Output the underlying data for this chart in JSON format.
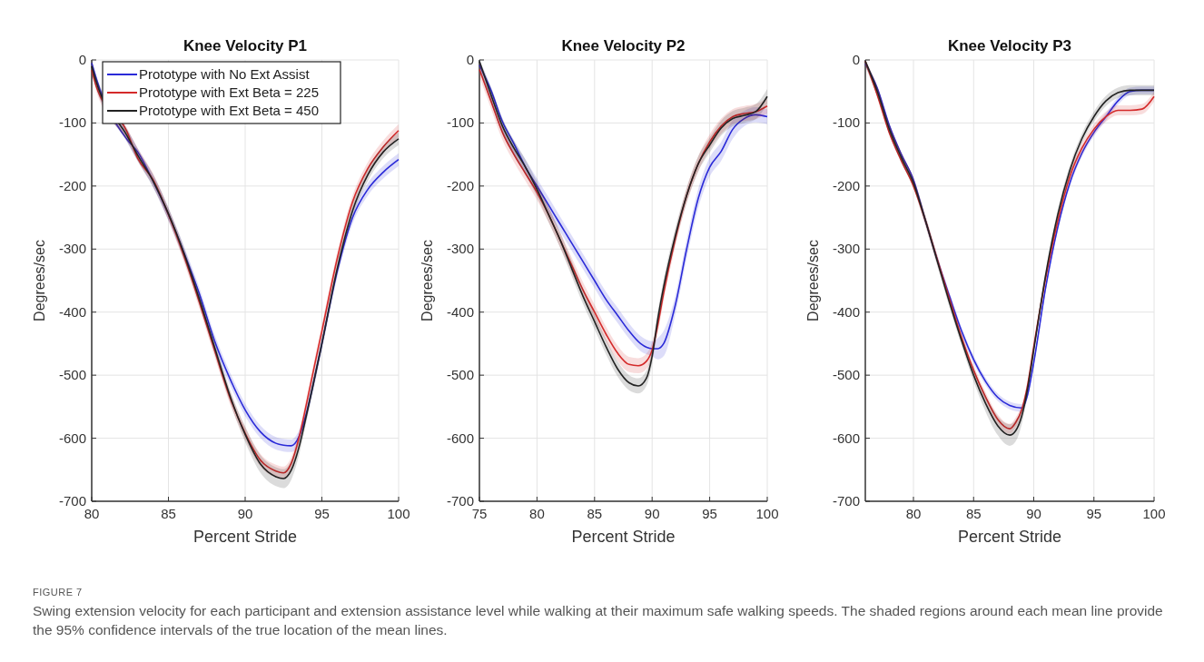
{
  "chart_data": [
    {
      "type": "line",
      "title": "Knee Velocity P1",
      "xlabel": "Percent Stride",
      "ylabel": "Degrees/sec",
      "xlim": [
        80,
        100
      ],
      "xticks": [
        80,
        85,
        90,
        95,
        100
      ],
      "ylim": [
        -700,
        0
      ],
      "yticks": [
        -700,
        -600,
        -500,
        -400,
        -300,
        -200,
        -100,
        0
      ],
      "grid": true,
      "legend": "top left",
      "annotations": [
        "FIGURE 7",
        "Swing extension velocity for each participant and extension assistance level while walking at their maximum safe walking speeds. The shaded regions around each mean line provide the 95% confidence intervals of the true location of the mean lines."
      ],
      "series": [
        {
          "name": "Prototype with No Ext Assist",
          "color": "#2a2ad8",
          "x": [
            80,
            80.3,
            82.3,
            83,
            84,
            85,
            86,
            87,
            88,
            89,
            90,
            91,
            92,
            92.5,
            93,
            93.5,
            94,
            94.5,
            95,
            96,
            97,
            98,
            99,
            100
          ],
          "values": [
            -5,
            -30,
            -126,
            -146,
            -192,
            -245,
            -305,
            -370,
            -445,
            -505,
            -555,
            -590,
            -608,
            -611,
            -612,
            -598,
            -560,
            -507,
            -450,
            -335,
            -250,
            -205,
            -178,
            -158
          ],
          "lower": [
            -20,
            -45,
            -130,
            -160,
            -202,
            -255,
            -315,
            -380,
            -455,
            -515,
            -565,
            -600,
            -618,
            -621,
            -622,
            -608,
            -570,
            -517,
            -460,
            -345,
            -260,
            -215,
            -188,
            -168
          ],
          "upper": [
            0,
            -25,
            -110,
            -140,
            -182,
            -235,
            -295,
            -360,
            -435,
            -495,
            -545,
            -580,
            -598,
            -601,
            -602,
            -588,
            -550,
            -497,
            -440,
            -325,
            -240,
            -195,
            -168,
            -148
          ]
        },
        {
          "name": "Prototype with Ext Beta = 225",
          "color": "#d42a2a",
          "x": [
            80,
            80.3,
            82.3,
            83,
            84,
            85,
            86,
            87,
            88,
            89,
            90,
            91,
            92,
            92.5,
            93,
            93.5,
            94,
            94.5,
            95,
            96,
            97,
            98,
            99,
            100
          ],
          "values": [
            -16,
            -42,
            -114,
            -156,
            -190,
            -245,
            -310,
            -383,
            -460,
            -535,
            -592,
            -635,
            -652,
            -655,
            -640,
            -600,
            -545,
            -487,
            -430,
            -315,
            -225,
            -172,
            -138,
            -112
          ],
          "lower": [
            -25,
            -50,
            -128,
            -160,
            -200,
            -255,
            -320,
            -393,
            -470,
            -545,
            -602,
            -645,
            -662,
            -665,
            -650,
            -610,
            -555,
            -497,
            -440,
            -325,
            -235,
            -182,
            -148,
            -122
          ],
          "upper": [
            -5,
            -30,
            -108,
            -140,
            -180,
            -235,
            -300,
            -373,
            -450,
            -525,
            -582,
            -625,
            -642,
            -645,
            -630,
            -590,
            -535,
            -477,
            -420,
            -305,
            -215,
            -162,
            -128,
            -102
          ]
        },
        {
          "name": "Prototype with Ext Beta = 450",
          "color": "#222222",
          "x": [
            80,
            80.3,
            82.3,
            83,
            84,
            85,
            86,
            87,
            88,
            89,
            90,
            91,
            92,
            92.5,
            93,
            93.5,
            94,
            94.5,
            95,
            96,
            97,
            98,
            99,
            100
          ],
          "values": [
            -10,
            -35,
            -120,
            -151,
            -192,
            -244,
            -306,
            -378,
            -455,
            -532,
            -594,
            -641,
            -661,
            -664,
            -651,
            -615,
            -563,
            -507,
            -450,
            -331,
            -239,
            -182,
            -146,
            -125
          ],
          "lower": [
            -20,
            -45,
            -130,
            -161,
            -202,
            -254,
            -316,
            -388,
            -465,
            -542,
            -606,
            -655,
            -676,
            -679,
            -666,
            -628,
            -573,
            -517,
            -460,
            -341,
            -249,
            -192,
            -156,
            -135
          ],
          "upper": [
            0,
            -25,
            -110,
            -141,
            -182,
            -234,
            -296,
            -368,
            -445,
            -522,
            -582,
            -627,
            -646,
            -649,
            -636,
            -602,
            -553,
            -497,
            -440,
            -321,
            -229,
            -172,
            -136,
            -115
          ]
        }
      ]
    },
    {
      "type": "line",
      "title": "Knee Velocity P2",
      "xlabel": "Percent Stride",
      "ylabel": "Degrees/sec",
      "xlim": [
        75,
        100
      ],
      "xticks": [
        75,
        80,
        85,
        90,
        95,
        100
      ],
      "ylim": [
        -700,
        0
      ],
      "yticks": [
        -700,
        -600,
        -500,
        -400,
        -300,
        -200,
        -100,
        0
      ],
      "grid": true,
      "series": [
        {
          "color": "#2a2ad8",
          "x": [
            75,
            76,
            77,
            78,
            79,
            80,
            81,
            82,
            83,
            84,
            85,
            86,
            87,
            88,
            89,
            90,
            90.5,
            91,
            92,
            93,
            94,
            95,
            96,
            97,
            98,
            99,
            100
          ],
          "values": [
            -8,
            -48,
            -98,
            -133,
            -170,
            -200,
            -230,
            -260,
            -290,
            -320,
            -350,
            -380,
            -405,
            -430,
            -450,
            -458,
            -458,
            -450,
            -390,
            -300,
            -220,
            -170,
            -145,
            -110,
            -93,
            -87,
            -90
          ],
          "lower": [
            -17,
            -67,
            -117,
            -152,
            -182,
            -212,
            -242,
            -272,
            -302,
            -332,
            -362,
            -392,
            -417,
            -442,
            -462,
            -470,
            -475,
            -470,
            -405,
            -315,
            -235,
            -185,
            -160,
            -125,
            -105,
            -99,
            -102
          ],
          "upper": [
            0,
            -43,
            -93,
            -128,
            -158,
            -188,
            -218,
            -248,
            -278,
            -308,
            -338,
            -368,
            -393,
            -418,
            -438,
            -446,
            -441,
            -430,
            -375,
            -285,
            -205,
            -155,
            -130,
            -95,
            -81,
            -75,
            -78
          ]
        },
        {
          "color": "#d42a2a",
          "x": [
            75,
            76,
            77,
            78,
            79,
            80,
            81,
            82,
            83,
            84,
            85,
            86,
            87,
            88,
            88.8,
            89.5,
            90,
            90.5,
            91,
            92,
            93,
            94,
            95,
            96,
            97,
            98,
            99,
            100
          ],
          "values": [
            -15,
            -65,
            -115,
            -150,
            -180,
            -210,
            -245,
            -285,
            -325,
            -365,
            -400,
            -435,
            -465,
            -483,
            -485,
            -478,
            -460,
            -420,
            -370,
            -285,
            -215,
            -165,
            -130,
            -105,
            -90,
            -85,
            -82,
            -73
          ],
          "lower": [
            -27,
            -77,
            -127,
            -162,
            -192,
            -222,
            -257,
            -297,
            -337,
            -377,
            -412,
            -447,
            -477,
            -495,
            -497,
            -490,
            -472,
            -432,
            -382,
            -297,
            -227,
            -177,
            -142,
            -117,
            -102,
            -97,
            -94,
            -85
          ],
          "upper": [
            -3,
            -53,
            -103,
            -138,
            -168,
            -198,
            -233,
            -273,
            -313,
            -353,
            -388,
            -423,
            -453,
            -471,
            -473,
            -466,
            -448,
            -408,
            -358,
            -273,
            -203,
            -153,
            -118,
            -93,
            -78,
            -73,
            -70,
            -61
          ]
        },
        {
          "color": "#222222",
          "x": [
            75,
            76,
            77,
            78,
            79,
            80,
            81,
            82,
            83,
            84,
            85,
            86,
            87,
            88,
            88.8,
            89.5,
            90,
            90.5,
            91,
            92,
            93,
            94,
            95,
            96,
            97,
            98,
            99,
            100
          ],
          "values": [
            -2,
            -55,
            -105,
            -140,
            -170,
            -205,
            -245,
            -285,
            -330,
            -375,
            -415,
            -455,
            -490,
            -512,
            -517,
            -505,
            -470,
            -410,
            -360,
            -280,
            -215,
            -165,
            -135,
            -108,
            -93,
            -88,
            -82,
            -58
          ],
          "lower": [
            -14,
            -67,
            -117,
            -152,
            -182,
            -217,
            -257,
            -297,
            -342,
            -387,
            -427,
            -467,
            -502,
            -524,
            -529,
            -517,
            -482,
            -422,
            -372,
            -292,
            -227,
            -177,
            -147,
            -120,
            -105,
            -100,
            -94,
            -70
          ],
          "upper": [
            0,
            -43,
            -93,
            -128,
            -158,
            -193,
            -233,
            -273,
            -318,
            -363,
            -403,
            -443,
            -478,
            -500,
            -505,
            -493,
            -458,
            -398,
            -348,
            -268,
            -203,
            -153,
            -123,
            -96,
            -81,
            -76,
            -70,
            -46
          ]
        }
      ]
    },
    {
      "type": "line",
      "title": "Knee Velocity P3",
      "xlabel": "Percent Stride",
      "ylabel": "Degrees/sec",
      "xlim": [
        76,
        100
      ],
      "xticks": [
        80,
        85,
        90,
        95,
        100
      ],
      "ylim": [
        -700,
        0
      ],
      "yticks": [
        -700,
        -600,
        -500,
        -400,
        -300,
        -200,
        -100,
        0
      ],
      "grid": true,
      "series": [
        {
          "color": "#2a2ad8",
          "x": [
            76,
            77,
            78,
            79,
            80,
            81,
            82,
            83,
            84,
            85,
            86,
            87,
            88,
            89,
            89.5,
            90,
            91,
            92,
            93,
            94,
            95,
            96,
            97,
            98,
            99,
            100
          ],
          "values": [
            -6,
            -45,
            -104,
            -150,
            -190,
            -255,
            -318,
            -375,
            -430,
            -475,
            -510,
            -535,
            -548,
            -552,
            -530,
            -480,
            -360,
            -265,
            -195,
            -148,
            -115,
            -90,
            -65,
            -50,
            -48,
            -48
          ],
          "lower": [
            -8,
            -56,
            -116,
            -161,
            -201,
            -261,
            -324,
            -381,
            -436,
            -481,
            -516,
            -541,
            -554,
            -558,
            -536,
            -486,
            -366,
            -271,
            -201,
            -154,
            -121,
            -96,
            -71,
            -56,
            -54,
            -54
          ],
          "upper": [
            0,
            -44,
            -104,
            -149,
            -189,
            -249,
            -312,
            -369,
            -424,
            -469,
            -504,
            -529,
            -542,
            -546,
            -524,
            -474,
            -354,
            -259,
            -189,
            -142,
            -109,
            -84,
            -59,
            -44,
            -42,
            -42
          ]
        },
        {
          "color": "#d42a2a",
          "x": [
            76,
            77,
            78,
            79,
            80,
            81,
            82,
            83,
            84,
            85,
            86,
            87,
            88,
            88.5,
            89,
            89.5,
            90,
            91,
            92,
            93,
            94,
            95,
            96,
            97,
            98,
            99,
            100
          ],
          "values": [
            -2,
            -56,
            -116,
            -160,
            -200,
            -255,
            -318,
            -380,
            -440,
            -492,
            -535,
            -570,
            -585,
            -575,
            -555,
            -515,
            -455,
            -345,
            -255,
            -185,
            -140,
            -110,
            -90,
            -80,
            -80,
            -78,
            -58
          ],
          "lower": [
            -10,
            -58,
            -118,
            -163,
            -203,
            -263,
            -326,
            -388,
            -448,
            -500,
            -543,
            -578,
            -593,
            -583,
            -563,
            -523,
            -463,
            -353,
            -263,
            -193,
            -148,
            -118,
            -98,
            -88,
            -88,
            -86,
            -66
          ],
          "upper": [
            0,
            -42,
            -102,
            -147,
            -187,
            -247,
            -310,
            -372,
            -432,
            -484,
            -527,
            -562,
            -577,
            -567,
            -547,
            -507,
            -447,
            -337,
            -247,
            -177,
            -132,
            -102,
            -82,
            -72,
            -72,
            -70,
            -50
          ]
        },
        {
          "color": "#222222",
          "x": [
            76,
            77,
            78,
            79,
            80,
            81,
            82,
            83,
            84,
            85,
            86,
            87,
            88,
            88.5,
            89,
            89.5,
            90,
            91,
            92,
            93,
            94,
            95,
            96,
            97,
            98,
            99,
            100
          ],
          "values": [
            -2,
            -50,
            -110,
            -155,
            -195,
            -255,
            -320,
            -385,
            -445,
            -500,
            -545,
            -580,
            -595,
            -588,
            -565,
            -520,
            -460,
            -340,
            -245,
            -175,
            -125,
            -90,
            -65,
            -52,
            -48,
            -48,
            -48
          ],
          "lower": [
            -10,
            -58,
            -118,
            -163,
            -203,
            -263,
            -328,
            -393,
            -453,
            -510,
            -558,
            -595,
            -612,
            -605,
            -578,
            -530,
            -468,
            -348,
            -253,
            -183,
            -133,
            -98,
            -73,
            -60,
            -56,
            -56,
            -56
          ],
          "upper": [
            0,
            -42,
            -102,
            -147,
            -187,
            -247,
            -312,
            -377,
            -437,
            -490,
            -532,
            -565,
            -578,
            -571,
            -552,
            -510,
            -452,
            -332,
            -237,
            -167,
            -117,
            -82,
            -57,
            -44,
            -40,
            -40,
            -40
          ]
        }
      ]
    }
  ]
}
